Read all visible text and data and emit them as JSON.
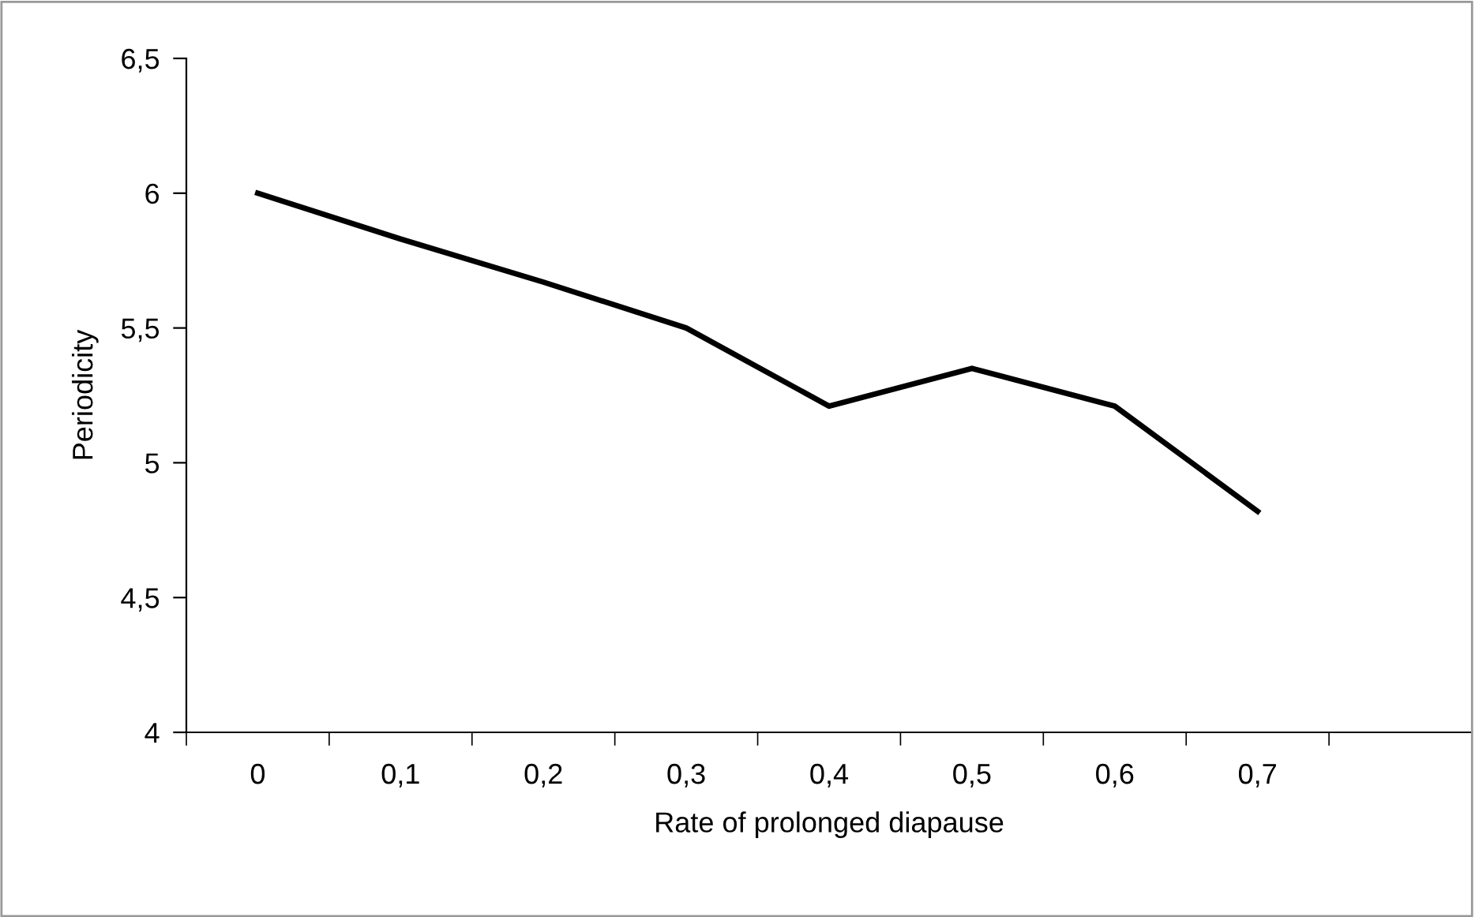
{
  "chart_data": {
    "type": "line",
    "xlabel": "Rate of prolonged diapause",
    "ylabel": "Periodicity",
    "categories": [
      "0",
      "0,1",
      "0,2",
      "0,3",
      "0,4",
      "0,5",
      "0,6",
      "0,7",
      null
    ],
    "series": [
      {
        "color": "#000000",
        "values": [
          6.0,
          5.83,
          5.67,
          5.5,
          5.21,
          5.35,
          5.21,
          4.82,
          null
        ]
      }
    ],
    "ylim": [
      4,
      6.5
    ],
    "yticks": [
      4,
      {
        "value": 4.5,
        "label": "4,5"
      },
      5,
      {
        "value": 5.5,
        "label": "5,5"
      },
      6,
      {
        "value": 6.5,
        "label": "6,5"
      }
    ],
    "grid": false,
    "legend": false,
    "marker": "none",
    "line_style": "solid"
  }
}
